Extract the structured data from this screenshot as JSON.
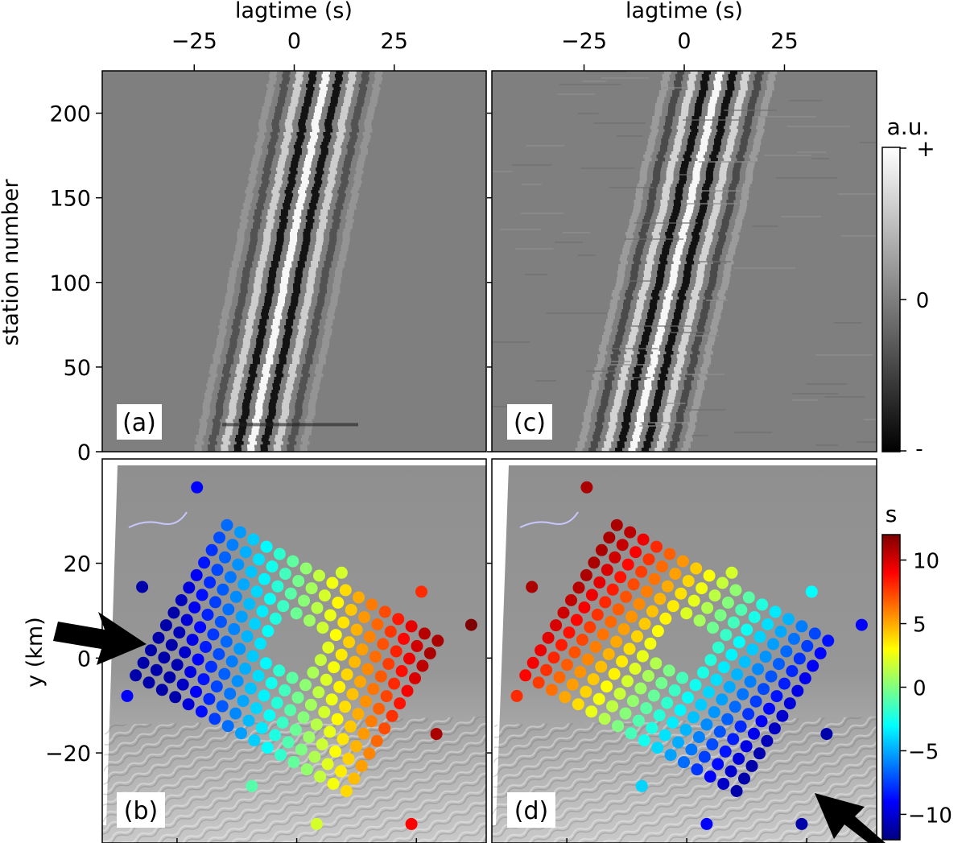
{
  "chart_data": [
    {
      "panel": "a",
      "type": "heatmap",
      "panel_label": "(a)",
      "xlabel": "lagtime (s)",
      "ylabel": "station number",
      "xticks": [
        -25,
        0,
        25
      ],
      "xtick_labels": [
        "−25",
        "0",
        "25"
      ],
      "yticks": [
        0,
        50,
        100,
        150,
        200
      ],
      "xlim": [
        -48,
        48
      ],
      "ylim": [
        0,
        225
      ],
      "wavefront": {
        "lag_at_station_0": -11,
        "lag_at_station_225": 8,
        "period_s": 3.3,
        "half_width_s": 10
      },
      "colormap": "gray"
    },
    {
      "panel": "c",
      "type": "heatmap",
      "panel_label": "(c)",
      "xlabel": "lagtime (s)",
      "xticks": [
        -25,
        0,
        25
      ],
      "xtick_labels": [
        "−25",
        "0",
        "25"
      ],
      "xlim": [
        -48,
        48
      ],
      "ylim": [
        0,
        225
      ],
      "wavefront": {
        "lag_at_station_0": -13,
        "lag_at_station_225": 9,
        "period_s": 3.3,
        "half_width_s": 11
      },
      "colormap": "gray"
    },
    {
      "panel": "b",
      "type": "scatter",
      "panel_label": "(b)",
      "ylabel": "y (km)",
      "yticks": [
        -20,
        0,
        20
      ],
      "yrange": [
        -39,
        42
      ],
      "xrange": [
        -39,
        38
      ],
      "grid_axis_deg": -30,
      "incoming_direction": "from west (left)",
      "points_rule": "delay increases eastward from about -10 s to +10 s",
      "outliers": [
        {
          "x": -20,
          "y": 36,
          "delay": -9
        },
        {
          "x": 9,
          "y": 18,
          "delay": 2
        },
        {
          "x": 25,
          "y": 14,
          "delay": 8
        },
        {
          "x": -31,
          "y": 15,
          "delay": -11
        },
        {
          "x": 35,
          "y": 7,
          "delay": 12
        },
        {
          "x": -34,
          "y": -8,
          "delay": -9
        },
        {
          "x": 28,
          "y": -16,
          "delay": 11
        },
        {
          "x": -9,
          "y": -27,
          "delay": -1
        },
        {
          "x": 4,
          "y": -35,
          "delay": 2
        },
        {
          "x": 23,
          "y": -35,
          "delay": 9
        }
      ]
    },
    {
      "panel": "d",
      "type": "scatter",
      "panel_label": "(d)",
      "yrange": [
        -39,
        42
      ],
      "xrange": [
        -39,
        38
      ],
      "incoming_direction": "from southeast (bottom-right)",
      "points_rule": "delay decreases toward the southeast from about +9 s to -10 s",
      "outliers": [
        {
          "x": -20,
          "y": 36,
          "delay": 11
        },
        {
          "x": 9,
          "y": 18,
          "delay": 2
        },
        {
          "x": 25,
          "y": 14,
          "delay": -3
        },
        {
          "x": -31,
          "y": 15,
          "delay": 11
        },
        {
          "x": 35,
          "y": 7,
          "delay": -9
        },
        {
          "x": -34,
          "y": -8,
          "delay": 8
        },
        {
          "x": 28,
          "y": -16,
          "delay": -11
        },
        {
          "x": -9,
          "y": -27,
          "delay": -4
        },
        {
          "x": 4,
          "y": -35,
          "delay": -9
        },
        {
          "x": 23,
          "y": -35,
          "delay": -11
        }
      ]
    }
  ],
  "colorbars": {
    "amplitude": {
      "title": "a.u.",
      "top_label": "+",
      "mid_label": "0",
      "bottom_label": "-",
      "top_color": "#ffffff",
      "bottom_color": "#000000"
    },
    "delay": {
      "title": "s",
      "ticks": [
        10,
        5,
        0,
        -5,
        -10
      ],
      "tick_labels": [
        "10",
        "5",
        "0",
        "−5",
        "−10"
      ],
      "vmin": -12,
      "vmax": 12,
      "colormap": "jet"
    }
  },
  "arrow_color": "#000000"
}
